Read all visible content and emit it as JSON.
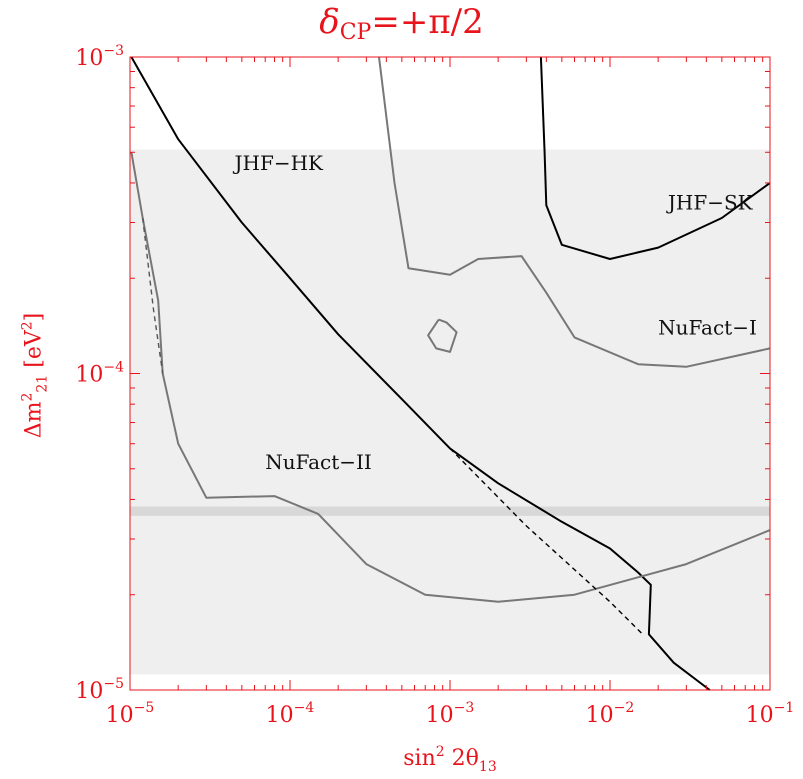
{
  "chart_data": {
    "type": "line",
    "title": "δCP=+π/2",
    "title_parts": {
      "delta": "δ",
      "sub": "CP",
      "rest": "=+π/2"
    },
    "xlabel": "sin² 2θ13",
    "xlabel_parts": {
      "base": "sin",
      "sup": "2",
      "mid": " 2θ",
      "sub": "13"
    },
    "ylabel": "Δm²21 [eV²]",
    "ylabel_parts": {
      "base": "Δm",
      "sup": "2",
      "sub": "21",
      "rest": " [eV",
      "sup2": "2",
      "end": "]"
    },
    "x_scale": "log",
    "y_scale": "log",
    "xlim": [
      1e-05,
      0.1
    ],
    "ylim": [
      1e-05,
      0.001
    ],
    "x_ticks": [
      {
        "value": 1e-05,
        "base": "10",
        "exp": "−5"
      },
      {
        "value": 0.0001,
        "base": "10",
        "exp": "−4"
      },
      {
        "value": 0.001,
        "base": "10",
        "exp": "−3"
      },
      {
        "value": 0.01,
        "base": "10",
        "exp": "−2"
      },
      {
        "value": 0.1,
        "base": "10",
        "exp": "−1"
      }
    ],
    "y_ticks": [
      {
        "value": 1e-05,
        "base": "10",
        "exp": "−5"
      },
      {
        "value": 0.0001,
        "base": "10",
        "exp": "−4"
      },
      {
        "value": 0.001,
        "base": "10",
        "exp": "−3"
      }
    ],
    "colors": {
      "axis": "#e8141c",
      "band": "#efefef",
      "lma_band": "#d8d8d8",
      "black": "#000000",
      "gray": "#777777"
    },
    "bands": [
      {
        "ymin": 1.12e-05,
        "ymax": 0.00051,
        "color": "#efefef"
      },
      {
        "ymin": 3.55e-05,
        "ymax": 3.8e-05,
        "color": "#d8d8d8"
      }
    ],
    "series": [
      {
        "name": "JHF−HK",
        "color": "#000000",
        "dashed": false,
        "points": [
          [
            1.02e-05,
            0.001
          ],
          [
            2e-05,
            0.00055
          ],
          [
            5e-05,
            0.0003
          ],
          [
            0.0001,
            0.0002
          ],
          [
            0.0002,
            0.000133
          ],
          [
            0.0005,
            8.3e-05
          ],
          [
            0.001,
            5.8e-05
          ],
          [
            0.002,
            4.5e-05
          ],
          [
            0.005,
            3.4e-05
          ],
          [
            0.01,
            2.8e-05
          ],
          [
            0.015,
            2.35e-05
          ],
          [
            0.018,
            2.15e-05
          ],
          [
            0.0175,
            1.5e-05
          ],
          [
            0.025,
            1.22e-05
          ],
          [
            0.042,
            1e-05
          ]
        ]
      },
      {
        "name": "JHF−SK",
        "color": "#000000",
        "dashed": false,
        "points": [
          [
            0.0037,
            0.001
          ],
          [
            0.0039,
            0.0005
          ],
          [
            0.004,
            0.00034
          ],
          [
            0.005,
            0.000255
          ],
          [
            0.01,
            0.00023
          ],
          [
            0.02,
            0.00025
          ],
          [
            0.05,
            0.00031
          ],
          [
            0.1,
            0.0004
          ]
        ]
      },
      {
        "name": "NuFact−I",
        "color": "#777777",
        "dashed": false,
        "points": [
          [
            0.00036,
            0.001
          ],
          [
            0.00045,
            0.0004
          ],
          [
            0.00055,
            0.000215
          ],
          [
            0.001,
            0.000205
          ],
          [
            0.0015,
            0.00023
          ],
          [
            0.0028,
            0.000235
          ],
          [
            0.004,
            0.00018
          ],
          [
            0.006,
            0.00013
          ],
          [
            0.015,
            0.000107
          ],
          [
            0.03,
            0.000105
          ],
          [
            0.1,
            0.00012
          ]
        ]
      },
      {
        "name": "NuFact−II",
        "color": "#777777",
        "dashed": false,
        "points": [
          [
            1.02e-05,
            0.0005
          ],
          [
            1.2e-05,
            0.00031
          ],
          [
            1.5e-05,
            0.00017
          ],
          [
            1.6e-05,
            0.0001
          ],
          [
            2e-05,
            6e-05
          ],
          [
            3e-05,
            4.05e-05
          ],
          [
            8e-05,
            4.1e-05
          ],
          [
            0.00015,
            3.6e-05
          ],
          [
            0.0003,
            2.5e-05
          ],
          [
            0.0007,
            2e-05
          ],
          [
            0.002,
            1.9e-05
          ],
          [
            0.006,
            2e-05
          ],
          [
            0.03,
            2.5e-05
          ],
          [
            0.1,
            3.2e-05
          ]
        ]
      },
      {
        "color": "#777777",
        "dashed": false,
        "points": [
          [
            0.00085,
            0.000148
          ],
          [
            0.00095,
            0.000145
          ],
          [
            0.0011,
            0.000135
          ],
          [
            0.001,
            0.000117
          ],
          [
            0.00082,
            0.00012
          ],
          [
            0.00073,
            0.000132
          ],
          [
            0.00085,
            0.000148
          ]
        ]
      },
      {
        "color": "#000000",
        "dashed": true,
        "points": [
          [
            0.001,
            5.8e-05
          ],
          [
            0.003,
            3.3e-05
          ],
          [
            0.01,
            1.9e-05
          ],
          [
            0.016,
            1.5e-05
          ]
        ]
      },
      {
        "color": "#555555",
        "dashed": true,
        "points": [
          [
            1.2e-05,
            0.00031
          ],
          [
            1.4e-05,
            0.00016
          ],
          [
            1.6e-05,
            0.0001
          ]
        ]
      }
    ],
    "labels": [
      {
        "text": "JHF−HK",
        "x": 4.5e-05,
        "y": 0.00044
      },
      {
        "text": "JHF−SK",
        "x": 0.023,
        "y": 0.00033
      },
      {
        "text": "NuFact−I",
        "x": 0.02,
        "y": 0.000133
      },
      {
        "text": "NuFact−II",
        "x": 7e-05,
        "y": 5e-05
      }
    ]
  }
}
